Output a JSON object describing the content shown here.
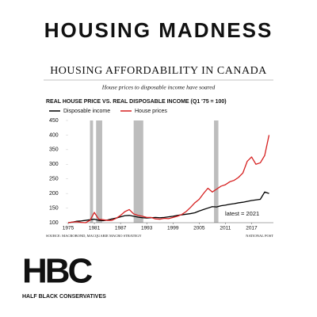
{
  "header": {
    "title": "HOUSING MADNESS"
  },
  "chart_data": {
    "type": "line",
    "title": "HOUSING AFFORDABILITY IN CANADA",
    "subtitle": "House prices to disposable income have soared",
    "chart_title": "REAL HOUSE PRICE VS. REAL DISPOSABLE INCOME (Q1 '75 = 100)",
    "annotation": "latest = 2021",
    "source": "SOURCE: MACROBOND, MACQUARIE MACRO STRATEGY",
    "credit": "NATIONAL POST",
    "x": [
      1975,
      1976,
      1977,
      1978,
      1979,
      1980,
      1981,
      1982,
      1983,
      1984,
      1985,
      1986,
      1987,
      1988,
      1989,
      1990,
      1991,
      1992,
      1993,
      1994,
      1995,
      1996,
      1997,
      1998,
      1999,
      2000,
      2001,
      2002,
      2003,
      2004,
      2005,
      2006,
      2007,
      2008,
      2009,
      2010,
      2011,
      2012,
      2013,
      2014,
      2015,
      2016,
      2017,
      2018,
      2019,
      2020,
      2021
    ],
    "series": [
      {
        "name": "Disposable income",
        "color": "#000000",
        "values": [
          100,
          102,
          105,
          106,
          108,
          110,
          112,
          108,
          107,
          109,
          113,
          116,
          120,
          124,
          125,
          122,
          119,
          117,
          116,
          117,
          118,
          117,
          118,
          120,
          122,
          125,
          127,
          129,
          131,
          134,
          140,
          145,
          150,
          155,
          154,
          158,
          160,
          163,
          165,
          168,
          170,
          173,
          176,
          178,
          180,
          205,
          200
        ]
      },
      {
        "name": "House prices",
        "color": "#d62020",
        "values": [
          100,
          102,
          103,
          101,
          100,
          108,
          135,
          112,
          110,
          108,
          108,
          115,
          125,
          138,
          145,
          130,
          125,
          122,
          118,
          118,
          113,
          112,
          115,
          114,
          118,
          122,
          128,
          138,
          152,
          168,
          180,
          200,
          218,
          205,
          215,
          225,
          230,
          240,
          245,
          255,
          270,
          310,
          325,
          300,
          305,
          330,
          400
        ]
      }
    ],
    "recessions": [
      [
        1980,
        1980.7
      ],
      [
        1981.4,
        1982.8
      ],
      [
        1990,
        1992.2
      ],
      [
        2008.4,
        2009.4
      ]
    ],
    "recession_color": "#bdbdbd",
    "xlim": [
      1975,
      2022
    ],
    "xticks": [
      1975,
      1981,
      1987,
      1993,
      1999,
      2005,
      2011,
      2017
    ],
    "ylim": [
      100,
      450
    ],
    "yticks": [
      100,
      150,
      200,
      250,
      300,
      350,
      400,
      450
    ],
    "grid": false
  },
  "logo": {
    "letters": "HBC",
    "name": "HALF BLACK CONSERVATIVES"
  }
}
